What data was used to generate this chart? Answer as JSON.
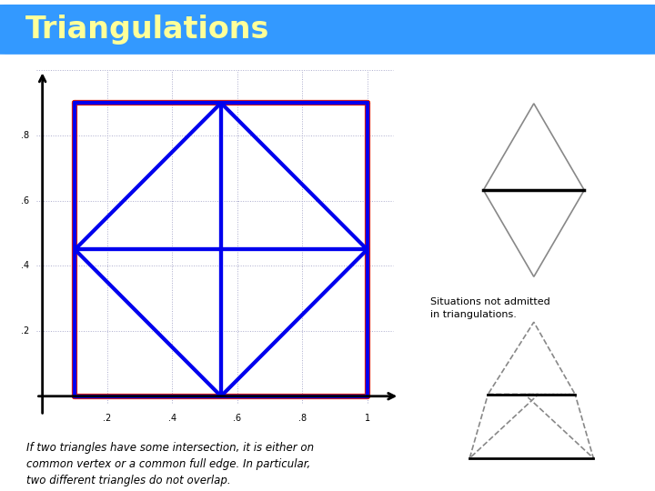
{
  "title": "Triangulations",
  "title_bg": "#3399FF",
  "title_text_color": "#FFFF99",
  "bg_color": "#FFFFFF",
  "italic_text": "If two triangles have some intersection, it is either on\ncommon vertex or a common full edge. In particular,\ntwo different triangles do not overlap.",
  "situations_text": "Situations not admitted\nin triangulations.",
  "outer_color": "#EE2200",
  "blue_color": "#0000EE",
  "diagram_color": "#888888",
  "outer_lw": 4.5,
  "blue_lw": 3.0,
  "axis_lw": 2.0,
  "grid_color": "#AAAACC",
  "ox0": 0.1,
  "oy0": 0.0,
  "ox1": 1.0,
  "oy1": 0.9
}
